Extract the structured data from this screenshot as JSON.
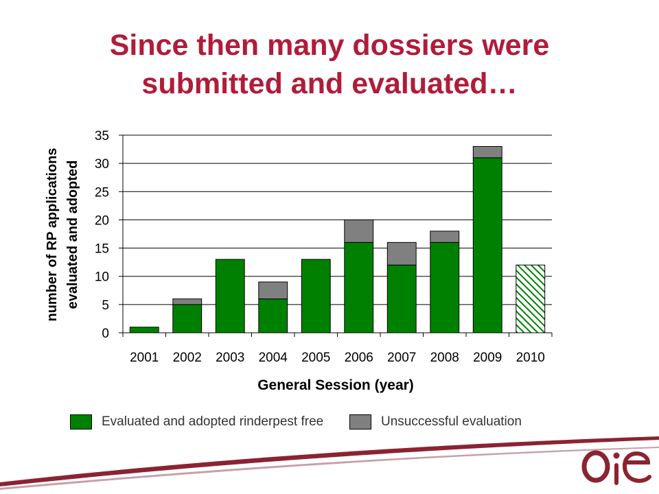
{
  "title_line1": "Since then many dossiers were",
  "title_line2": "submitted and evaluated…",
  "colors": {
    "title": "#b01c3a",
    "adopted": "#008000",
    "unsuccessful": "#808080",
    "projected_hatch": "#008000",
    "logo": "#8b2332"
  },
  "logo_text": "OiE",
  "legend": {
    "adopted_label": "Evaluated and adopted rinderpest free",
    "unsuccessful_label": "Unsuccessful evaluation"
  },
  "chart_data": {
    "type": "bar",
    "stacked": true,
    "categories": [
      "2001",
      "2002",
      "2003",
      "2004",
      "2005",
      "2006",
      "2007",
      "2008",
      "2009",
      "2010"
    ],
    "series": [
      {
        "name": "Evaluated and adopted rinderpest free",
        "values": [
          1,
          5,
          13,
          6,
          13,
          16,
          12,
          16,
          31,
          null
        ]
      },
      {
        "name": "Unsuccessful evaluation",
        "values": [
          0,
          1,
          0,
          3,
          0,
          4,
          4,
          2,
          2,
          null
        ]
      }
    ],
    "projected": {
      "category": "2010",
      "value": 12,
      "pattern": "green hatched"
    },
    "xlabel": "General Session (year)",
    "ylabel_line1": "number of RP applications",
    "ylabel_line2": "evaluated and adopted",
    "ylim": [
      0,
      35
    ],
    "yticks": [
      0,
      5,
      10,
      15,
      20,
      25,
      30,
      35
    ],
    "grid": true,
    "legend_position": "bottom"
  }
}
